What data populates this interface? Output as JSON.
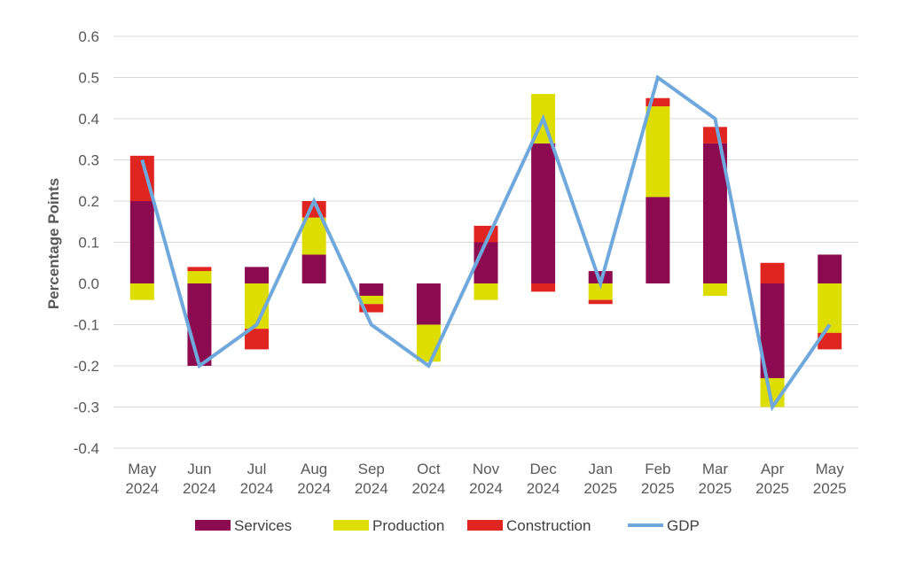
{
  "chart_data": {
    "type": "bar",
    "stacked": true,
    "title": "",
    "xlabel": "",
    "ylabel": "Percentage Points",
    "ylim": [
      -0.4,
      0.6
    ],
    "yticks": [
      "0.6",
      "0.5",
      "0.4",
      "0.3",
      "0.2",
      "0.1",
      "0.0",
      "-0.1",
      "-0.2",
      "-0.3",
      "-0.4"
    ],
    "ytick_values": [
      0.6,
      0.5,
      0.4,
      0.3,
      0.2,
      0.1,
      0.0,
      -0.1,
      -0.2,
      -0.3,
      -0.4
    ],
    "grid": true,
    "legend_position": "bottom",
    "categories": [
      [
        "May",
        "2024"
      ],
      [
        "Jun",
        "2024"
      ],
      [
        "Jul",
        "2024"
      ],
      [
        "Aug",
        "2024"
      ],
      [
        "Sep",
        "2024"
      ],
      [
        "Oct",
        "2024"
      ],
      [
        "Nov",
        "2024"
      ],
      [
        "Dec",
        "2024"
      ],
      [
        "Jan",
        "2025"
      ],
      [
        "Feb",
        "2025"
      ],
      [
        "Mar",
        "2025"
      ],
      [
        "Apr",
        "2025"
      ],
      [
        "May",
        "2025"
      ]
    ],
    "series": [
      {
        "name": "Services",
        "kind": "bar",
        "color": "#8B0A50",
        "values": [
          0.2,
          -0.2,
          0.04,
          0.07,
          -0.03,
          -0.1,
          0.1,
          0.34,
          0.03,
          0.21,
          0.34,
          -0.23,
          0.07
        ]
      },
      {
        "name": "Production",
        "kind": "bar",
        "color": "#DDDD00",
        "values": [
          -0.04,
          0.03,
          -0.11,
          0.09,
          -0.02,
          -0.09,
          -0.04,
          0.12,
          -0.04,
          0.22,
          -0.03,
          -0.07,
          -0.12
        ]
      },
      {
        "name": "Construction",
        "kind": "bar",
        "color": "#E0241F",
        "values": [
          0.11,
          0.01,
          -0.05,
          0.04,
          -0.02,
          0.0,
          0.04,
          -0.02,
          -0.01,
          0.02,
          0.04,
          0.05,
          -0.04
        ]
      },
      {
        "name": "GDP",
        "kind": "line",
        "color": "#6FA8DC",
        "values": [
          0.3,
          -0.2,
          -0.1,
          0.2,
          -0.1,
          -0.2,
          0.1,
          0.4,
          0.0,
          0.5,
          0.4,
          -0.3,
          -0.1
        ]
      }
    ]
  }
}
